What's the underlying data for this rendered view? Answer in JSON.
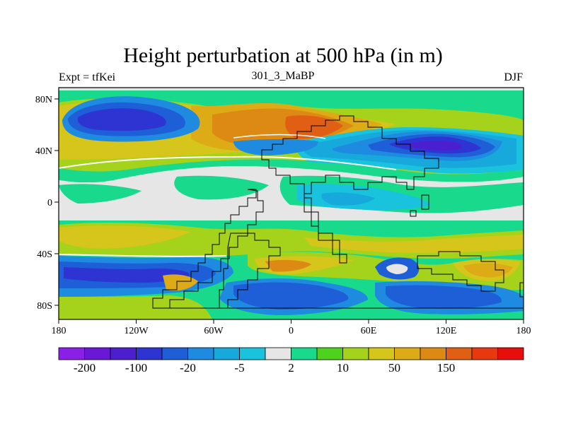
{
  "title": "Height perturbation at 500 hPa (in m)",
  "left_label": "Expt = tfKei",
  "center_label": "301_3_MaBP",
  "right_label": "DJF",
  "x_ticks": [
    "180",
    "120W",
    "60W",
    "0",
    "60E",
    "120E",
    "180"
  ],
  "y_ticks": [
    "80N",
    "40N",
    "0",
    "40S",
    "80S"
  ],
  "colorbar": {
    "colors": [
      "#8a1fe8",
      "#6a17d8",
      "#4b1fcf",
      "#2d34d2",
      "#1e5fd8",
      "#1e8be0",
      "#17a9dc",
      "#19c3dd",
      "#e6e6e6",
      "#19d98c",
      "#4fd21e",
      "#a5d21a",
      "#d6c51a",
      "#dcab16",
      "#dc8a14",
      "#e05f14",
      "#e8380f",
      "#e80e0e"
    ],
    "labels": [
      "-200",
      "-100",
      "-20",
      "-5",
      "2",
      "10",
      "50",
      "150"
    ]
  },
  "palette": {
    "land_outline": "#000000"
  }
}
